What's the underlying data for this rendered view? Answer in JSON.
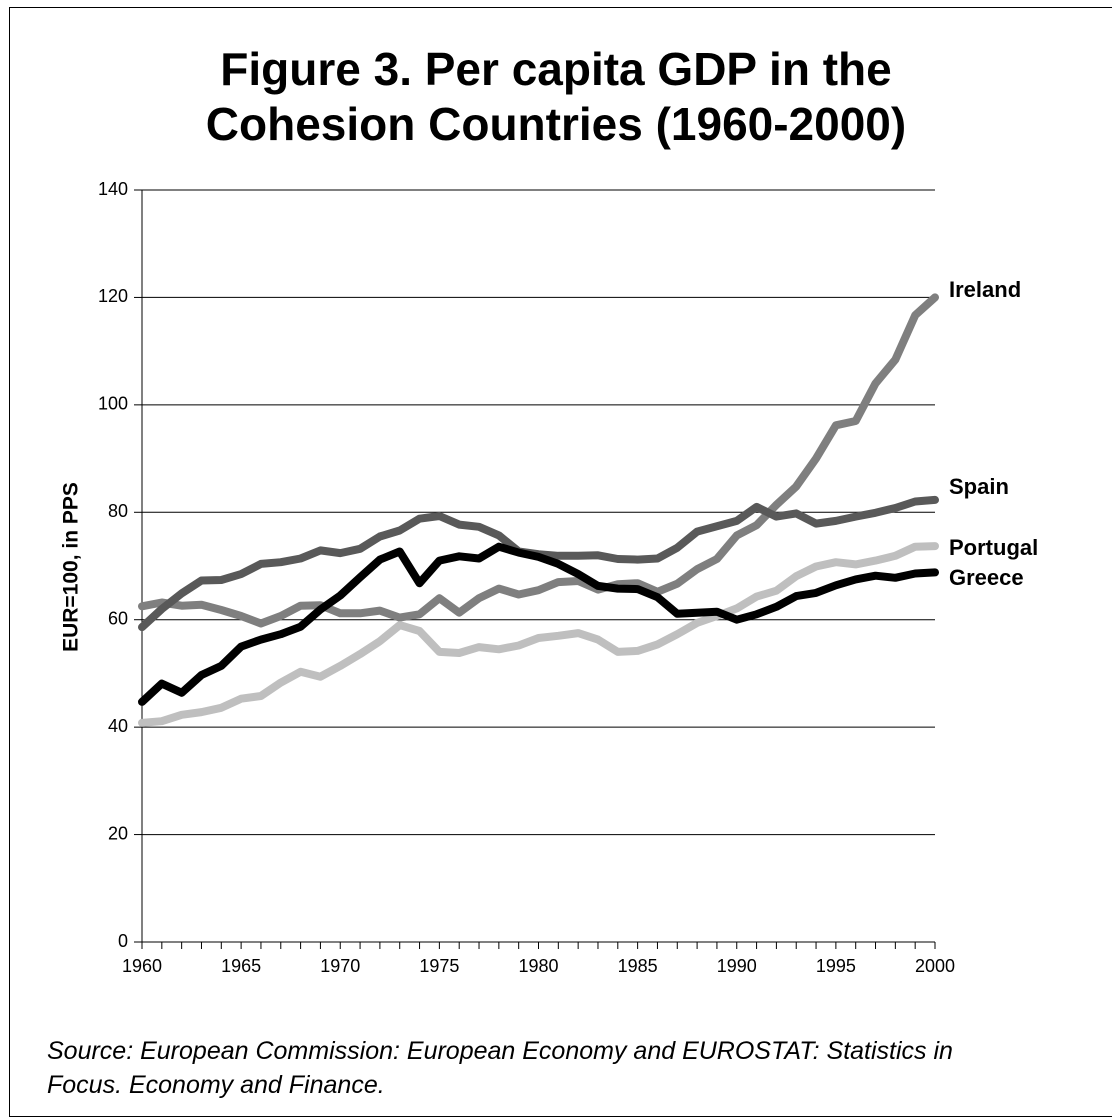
{
  "chart_data": {
    "type": "line",
    "title_lines": [
      "Figure 3. Per capita GDP in the",
      "Cohesion Countries (1960-2000)"
    ],
    "ylabel": "EUR=100, in PPS",
    "xlabel": "",
    "xlim": [
      1960,
      2000
    ],
    "ylim": [
      0,
      140
    ],
    "x_ticks": [
      1960,
      1965,
      1970,
      1975,
      1980,
      1985,
      1990,
      1995,
      2000
    ],
    "y_ticks": [
      0,
      20,
      40,
      60,
      80,
      100,
      120,
      140
    ],
    "grid": true,
    "legend": "direct labels at right end of lines",
    "x": [
      1960,
      1961,
      1962,
      1963,
      1964,
      1965,
      1966,
      1967,
      1968,
      1969,
      1970,
      1971,
      1972,
      1973,
      1974,
      1975,
      1976,
      1977,
      1978,
      1979,
      1980,
      1981,
      1982,
      1983,
      1984,
      1985,
      1986,
      1987,
      1988,
      1989,
      1990,
      1991,
      1992,
      1993,
      1994,
      1995,
      1996,
      1997,
      1998,
      1999,
      2000
    ],
    "series": [
      {
        "name": "Ireland",
        "color": "#7f7f7f",
        "values": [
          62.5,
          63.2,
          62.6,
          62.8,
          61.8,
          60.7,
          59.3,
          60.7,
          62.6,
          62.7,
          61.2,
          61.2,
          61.7,
          60.4,
          61.0,
          64.0,
          61.3,
          64.0,
          65.8,
          64.7,
          65.5,
          67.0,
          67.2,
          65.6,
          66.6,
          66.8,
          65.2,
          66.7,
          69.4,
          71.3,
          75.7,
          77.6,
          81.4,
          84.8,
          90.0,
          96.2,
          97.0,
          104.0,
          108.4,
          116.7,
          120.0
        ]
      },
      {
        "name": "Spain",
        "color": "#595959",
        "values": [
          58.6,
          62.0,
          64.9,
          67.3,
          67.4,
          68.5,
          70.4,
          70.7,
          71.4,
          72.9,
          72.4,
          73.2,
          75.5,
          76.6,
          78.8,
          79.3,
          77.7,
          77.3,
          75.7,
          72.7,
          72.2,
          71.9,
          71.9,
          72.0,
          71.3,
          71.2,
          71.4,
          73.4,
          76.4,
          77.4,
          78.4,
          81.0,
          79.2,
          79.8,
          77.9,
          78.4,
          79.2,
          79.9,
          80.8,
          82.0,
          82.3
        ]
      },
      {
        "name": "Portugal",
        "color": "#bfbfbf",
        "values": [
          40.8,
          41.1,
          42.3,
          42.8,
          43.6,
          45.3,
          45.8,
          48.3,
          50.3,
          49.4,
          51.4,
          53.6,
          56.0,
          59.0,
          57.9,
          54.0,
          53.8,
          54.9,
          54.5,
          55.2,
          56.6,
          57.0,
          57.5,
          56.3,
          54.0,
          54.2,
          55.4,
          57.3,
          59.4,
          60.7,
          62.1,
          64.3,
          65.4,
          68.1,
          69.9,
          70.7,
          70.3,
          71.0,
          71.9,
          73.6,
          73.7
        ]
      },
      {
        "name": "Greece",
        "color": "#000000",
        "values": [
          44.7,
          48.1,
          46.4,
          49.7,
          51.4,
          55.0,
          56.3,
          57.3,
          58.7,
          61.9,
          64.5,
          67.9,
          71.2,
          72.7,
          66.8,
          71.0,
          71.8,
          71.4,
          73.6,
          72.5,
          71.7,
          70.4,
          68.5,
          66.3,
          65.8,
          65.7,
          64.2,
          61.1,
          61.3,
          61.5,
          60.0,
          61.0,
          62.4,
          64.4,
          65.0,
          66.4,
          67.5,
          68.2,
          67.8,
          68.6,
          68.8
        ]
      }
    ]
  },
  "source_lines": [
    "Source: European Commission: European Economy and EUROSTAT: Statistics in",
    "Focus. Economy and Finance."
  ]
}
